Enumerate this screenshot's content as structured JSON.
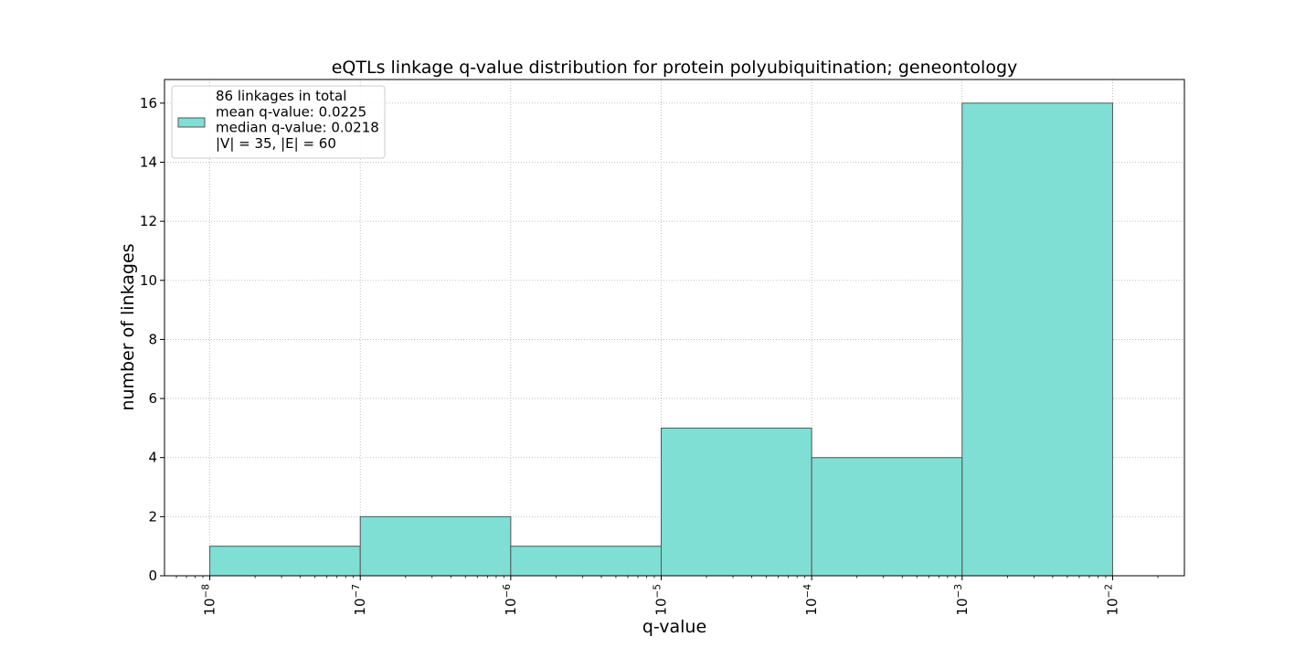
{
  "chart_data": {
    "type": "bar",
    "title": "eQTLs linkage q-value distribution for protein polyubiquitination; geneontology",
    "xlabel": "q-value",
    "ylabel": "number of linkages",
    "x_scale": "log",
    "xlim": [
      5e-09,
      0.03
    ],
    "ylim": [
      0,
      16.8
    ],
    "grid": true,
    "legend_position": "top-left",
    "bar_color": "#7fdfd4",
    "edge_color": "#555555",
    "bins": [
      {
        "from": 1e-08,
        "to": 1e-07,
        "count": 1
      },
      {
        "from": 1e-07,
        "to": 1e-06,
        "count": 2
      },
      {
        "from": 1e-06,
        "to": 1e-05,
        "count": 1
      },
      {
        "from": 1e-05,
        "to": 0.0001,
        "count": 5
      },
      {
        "from": 0.0001,
        "to": 0.001,
        "count": 4
      },
      {
        "from": 0.001,
        "to": 0.01,
        "count": 16
      }
    ],
    "x_ticks": [
      {
        "value": 1e-08,
        "base": "10",
        "exp": "−8"
      },
      {
        "value": 1e-07,
        "base": "10",
        "exp": "−7"
      },
      {
        "value": 1e-06,
        "base": "10",
        "exp": "−6"
      },
      {
        "value": 1e-05,
        "base": "10",
        "exp": "−5"
      },
      {
        "value": 0.0001,
        "base": "10",
        "exp": "−4"
      },
      {
        "value": 0.001,
        "base": "10",
        "exp": "−3"
      },
      {
        "value": 0.01,
        "base": "10",
        "exp": "−2"
      }
    ],
    "y_ticks": [
      0,
      2,
      4,
      6,
      8,
      10,
      12,
      14,
      16
    ],
    "legend_lines": [
      "86 linkages in total",
      "mean q-value: 0.0225",
      "median q-value: 0.0218",
      "|V| = 35, |E| = 60"
    ]
  }
}
